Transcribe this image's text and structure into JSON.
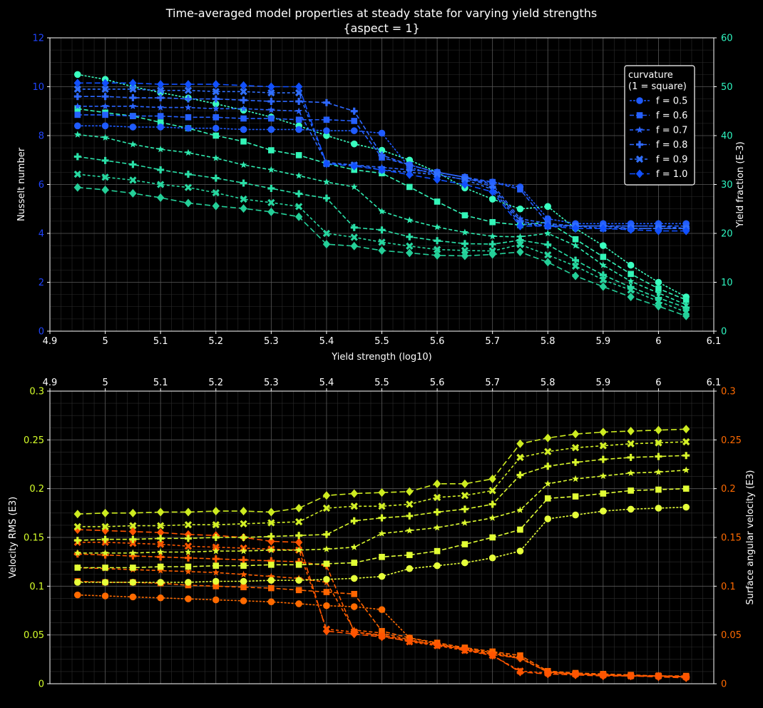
{
  "title_line1": "Time-averaged model properties at steady state for varying yield strengths",
  "title_line2": "{aspect = 1}",
  "colors": {
    "background": "#000000",
    "axis": "#ffffff",
    "grid_major": "#5a5a5a",
    "grid_minor": "#2c2c2c",
    "nusselt": "#1f44ff",
    "yield_fraction": "#2ef5c0",
    "vrms": "#d6ff2a",
    "surface": "#ff6a00",
    "series_blues": [
      "#1f5bff",
      "#2560ff",
      "#2a64ff",
      "#2e68ff",
      "#3170ff",
      "#1150ff"
    ],
    "series_cyans": [
      "#3affc0",
      "#33f5b8",
      "#2febb0",
      "#2ae0a8",
      "#27d8a0",
      "#24cf98"
    ],
    "series_yellows": [
      "#e6ff3a",
      "#e2ff35",
      "#ddfb30",
      "#d8f62b",
      "#d3f026",
      "#cdeb20"
    ],
    "series_oranges": [
      "#ff6a00",
      "#ff6500",
      "#ff6000",
      "#ff5c00",
      "#ff5800",
      "#ff5400"
    ]
  },
  "legend": {
    "title_line1": "curvature",
    "title_line2": "(1 = square)",
    "entries": [
      "f = 0.5",
      "f = 0.6",
      "f = 0.7",
      "f = 0.8",
      "f = 0.9",
      "f = 1.0"
    ],
    "markers": [
      "circle",
      "square",
      "star",
      "plus",
      "x",
      "diamond"
    ],
    "placement": "upper-right"
  },
  "chart_data": [
    {
      "type": "line",
      "xlabel": "Yield strength (log10)",
      "ylabel_left": "Nusselt number",
      "ylabel_right": "Yield fraction (E-3)",
      "xlim": [
        4.9,
        6.1
      ],
      "ylim_left": [
        0,
        12
      ],
      "ylim_right": [
        0,
        60
      ],
      "xticks": [
        "4.9",
        "5",
        "5.1",
        "5.2",
        "5.3",
        "5.4",
        "5.5",
        "5.6",
        "5.7",
        "5.8",
        "5.9",
        "6",
        "6.1"
      ],
      "yticks_left": [
        "0",
        "2",
        "4",
        "6",
        "8",
        "10",
        "12"
      ],
      "yticks_right": [
        "0",
        "10",
        "20",
        "30",
        "40",
        "50",
        "60"
      ],
      "grid": true,
      "x": [
        4.95,
        5.0,
        5.05,
        5.1,
        5.15,
        5.2,
        5.25,
        5.3,
        5.35,
        5.4,
        5.45,
        5.5,
        5.55,
        5.6,
        5.65,
        5.7,
        5.75,
        5.8,
        5.85,
        5.9,
        5.95,
        6.0,
        6.05
      ],
      "series_left": [
        {
          "name": "f = 0.5",
          "values": [
            8.4,
            8.4,
            8.35,
            8.35,
            8.3,
            8.3,
            8.25,
            8.25,
            8.25,
            8.2,
            8.2,
            8.1,
            6.7,
            6.4,
            6.2,
            6.1,
            5.9,
            4.6,
            4.4,
            4.4,
            4.4,
            4.4,
            4.4
          ]
        },
        {
          "name": "f = 0.6",
          "values": [
            8.85,
            8.85,
            8.8,
            8.8,
            8.75,
            8.75,
            8.7,
            8.7,
            8.65,
            8.65,
            8.6,
            7.1,
            6.8,
            6.5,
            6.3,
            6.1,
            5.8,
            4.4,
            4.3,
            4.3,
            4.3,
            4.3,
            4.3
          ]
        },
        {
          "name": "f = 0.7",
          "values": [
            9.2,
            9.2,
            9.2,
            9.15,
            9.15,
            9.1,
            9.1,
            9.05,
            9.0,
            6.9,
            6.8,
            6.7,
            6.6,
            6.5,
            6.3,
            6.0,
            4.6,
            4.4,
            4.3,
            4.3,
            4.3,
            4.3,
            4.2
          ]
        },
        {
          "name": "f = 0.8",
          "values": [
            9.6,
            9.6,
            9.55,
            9.55,
            9.5,
            9.5,
            9.45,
            9.4,
            9.4,
            9.35,
            9.0,
            7.2,
            6.8,
            6.5,
            6.3,
            5.9,
            4.5,
            4.3,
            4.3,
            4.3,
            4.2,
            4.2,
            4.2
          ]
        },
        {
          "name": "f = 0.9",
          "values": [
            9.9,
            9.9,
            9.9,
            9.85,
            9.85,
            9.8,
            9.8,
            9.75,
            9.75,
            6.85,
            6.8,
            6.6,
            6.5,
            6.4,
            6.2,
            5.8,
            4.4,
            4.3,
            4.3,
            4.2,
            4.2,
            4.2,
            4.2
          ]
        },
        {
          "name": "f = 1.0",
          "values": [
            10.15,
            10.15,
            10.15,
            10.1,
            10.1,
            10.1,
            10.05,
            10.0,
            10.0,
            6.85,
            6.75,
            6.6,
            6.4,
            6.2,
            6.0,
            5.7,
            4.3,
            4.3,
            4.2,
            4.2,
            4.15,
            4.1,
            4.1
          ]
        }
      ],
      "series_right": [
        {
          "name": "f = 0.5",
          "values": [
            52.5,
            51.5,
            50.0,
            48.8,
            47.7,
            46.5,
            45.2,
            43.8,
            42.0,
            40.0,
            38.3,
            37.0,
            35.0,
            32.5,
            29.3,
            27.0,
            25.0,
            25.5,
            21.0,
            17.5,
            13.5,
            10.0,
            7.0
          ]
        },
        {
          "name": "f = 0.6",
          "values": [
            45.5,
            44.7,
            44.0,
            42.7,
            41.5,
            40.0,
            38.8,
            37.0,
            36.0,
            34.3,
            33.0,
            32.3,
            29.5,
            26.5,
            23.7,
            22.3,
            21.7,
            22.3,
            18.8,
            15.2,
            11.7,
            8.7,
            6.4
          ]
        },
        {
          "name": "f = 0.7",
          "values": [
            40.2,
            39.6,
            38.2,
            37.2,
            36.5,
            35.4,
            34.0,
            33.0,
            31.8,
            30.5,
            29.5,
            24.5,
            22.7,
            21.3,
            20.2,
            19.4,
            19.3,
            20.0,
            17.5,
            13.5,
            10.2,
            7.8,
            5.4
          ]
        },
        {
          "name": "f = 0.8",
          "values": [
            35.7,
            34.9,
            34.1,
            33.0,
            32.1,
            31.3,
            30.3,
            29.2,
            28.1,
            27.2,
            21.2,
            20.7,
            19.3,
            18.5,
            17.9,
            17.8,
            18.6,
            17.7,
            14.5,
            11.5,
            9.0,
            6.8,
            4.8
          ]
        },
        {
          "name": "f = 0.9",
          "values": [
            32.1,
            31.5,
            30.9,
            30.0,
            29.4,
            28.3,
            27.0,
            26.3,
            25.5,
            20.0,
            19.2,
            18.2,
            17.4,
            16.7,
            16.5,
            16.4,
            17.7,
            15.6,
            13.3,
            10.5,
            8.4,
            6.1,
            3.9
          ]
        },
        {
          "name": "f = 1.0",
          "values": [
            29.4,
            28.9,
            28.2,
            27.3,
            26.2,
            25.6,
            25.1,
            24.4,
            23.4,
            17.8,
            17.4,
            16.5,
            16.0,
            15.5,
            15.4,
            15.7,
            16.2,
            14.1,
            11.3,
            9.1,
            7.0,
            5.1,
            3.1
          ]
        }
      ]
    },
    {
      "type": "line",
      "xlabel": "",
      "ylabel_left": "Velocity RMS (E3)",
      "ylabel_right": "Surface angular velocity (E3)",
      "xlim": [
        4.9,
        6.1
      ],
      "ylim_left": [
        0,
        0.3
      ],
      "ylim_right": [
        0,
        0.3
      ],
      "xticks": [
        "4.9",
        "5",
        "5.1",
        "5.2",
        "5.3",
        "5.4",
        "5.5",
        "5.6",
        "5.7",
        "5.8",
        "5.9",
        "6",
        "6.1"
      ],
      "yticks_left": [
        "0",
        "0.05",
        "0.1",
        "0.15",
        "0.2",
        "0.25",
        "0.3"
      ],
      "yticks_right": [
        "0",
        "0.05",
        "0.1",
        "0.15",
        "0.2",
        "0.25",
        "0.3"
      ],
      "grid": true,
      "x": [
        4.95,
        5.0,
        5.05,
        5.1,
        5.15,
        5.2,
        5.25,
        5.3,
        5.35,
        5.4,
        5.45,
        5.5,
        5.55,
        5.6,
        5.65,
        5.7,
        5.75,
        5.8,
        5.85,
        5.9,
        5.95,
        6.0,
        6.05
      ],
      "series_left": [
        {
          "name": "f = 0.5",
          "values": [
            0.104,
            0.104,
            0.104,
            0.104,
            0.104,
            0.105,
            0.105,
            0.106,
            0.106,
            0.107,
            0.108,
            0.11,
            0.118,
            0.121,
            0.124,
            0.129,
            0.136,
            0.169,
            0.173,
            0.177,
            0.179,
            0.18,
            0.181
          ]
        },
        {
          "name": "f = 0.6",
          "values": [
            0.119,
            0.119,
            0.119,
            0.12,
            0.12,
            0.121,
            0.121,
            0.122,
            0.122,
            0.123,
            0.124,
            0.13,
            0.132,
            0.136,
            0.143,
            0.15,
            0.158,
            0.19,
            0.192,
            0.195,
            0.198,
            0.199,
            0.2
          ]
        },
        {
          "name": "f = 0.7",
          "values": [
            0.134,
            0.134,
            0.134,
            0.135,
            0.135,
            0.136,
            0.136,
            0.137,
            0.137,
            0.138,
            0.14,
            0.154,
            0.157,
            0.16,
            0.165,
            0.17,
            0.178,
            0.205,
            0.21,
            0.213,
            0.216,
            0.217,
            0.219
          ]
        },
        {
          "name": "f = 0.8",
          "values": [
            0.147,
            0.148,
            0.148,
            0.149,
            0.149,
            0.15,
            0.15,
            0.151,
            0.152,
            0.153,
            0.167,
            0.17,
            0.172,
            0.176,
            0.179,
            0.184,
            0.214,
            0.223,
            0.227,
            0.23,
            0.232,
            0.233,
            0.234
          ]
        },
        {
          "name": "f = 0.9",
          "values": [
            0.161,
            0.161,
            0.162,
            0.162,
            0.163,
            0.163,
            0.164,
            0.165,
            0.166,
            0.18,
            0.182,
            0.182,
            0.184,
            0.191,
            0.193,
            0.198,
            0.232,
            0.238,
            0.242,
            0.244,
            0.246,
            0.247,
            0.248
          ]
        },
        {
          "name": "f = 1.0",
          "values": [
            0.174,
            0.175,
            0.175,
            0.176,
            0.176,
            0.177,
            0.177,
            0.176,
            0.18,
            0.193,
            0.195,
            0.196,
            0.197,
            0.205,
            0.205,
            0.21,
            0.246,
            0.252,
            0.256,
            0.258,
            0.259,
            0.26,
            0.261
          ]
        }
      ],
      "series_right": [
        {
          "name": "f = 0.5",
          "values": [
            0.091,
            0.09,
            0.089,
            0.088,
            0.087,
            0.086,
            0.085,
            0.084,
            0.082,
            0.08,
            0.079,
            0.076,
            0.047,
            0.041,
            0.036,
            0.032,
            0.027,
            0.012,
            0.01,
            0.009,
            0.008,
            0.008,
            0.007
          ]
        },
        {
          "name": "f = 0.6",
          "values": [
            0.105,
            0.104,
            0.104,
            0.103,
            0.101,
            0.1,
            0.099,
            0.098,
            0.096,
            0.094,
            0.092,
            0.054,
            0.047,
            0.042,
            0.037,
            0.033,
            0.029,
            0.013,
            0.011,
            0.01,
            0.009,
            0.008,
            0.008
          ]
        },
        {
          "name": "f = 0.7",
          "values": [
            0.119,
            0.118,
            0.117,
            0.116,
            0.115,
            0.114,
            0.112,
            0.11,
            0.108,
            0.104,
            0.055,
            0.052,
            0.045,
            0.04,
            0.036,
            0.031,
            0.026,
            0.012,
            0.01,
            0.009,
            0.008,
            0.008,
            0.007
          ]
        },
        {
          "name": "f = 0.8",
          "values": [
            0.133,
            0.132,
            0.131,
            0.13,
            0.129,
            0.128,
            0.127,
            0.126,
            0.125,
            0.121,
            0.053,
            0.05,
            0.044,
            0.04,
            0.035,
            0.03,
            0.026,
            0.012,
            0.01,
            0.009,
            0.008,
            0.008,
            0.007
          ]
        },
        {
          "name": "f = 0.9",
          "values": [
            0.145,
            0.145,
            0.144,
            0.143,
            0.141,
            0.14,
            0.139,
            0.138,
            0.137,
            0.056,
            0.053,
            0.049,
            0.043,
            0.039,
            0.034,
            0.029,
            0.013,
            0.011,
            0.01,
            0.009,
            0.008,
            0.008,
            0.007
          ]
        },
        {
          "name": "f = 1.0",
          "values": [
            0.158,
            0.157,
            0.156,
            0.155,
            0.153,
            0.152,
            0.15,
            0.146,
            0.145,
            0.054,
            0.051,
            0.048,
            0.044,
            0.04,
            0.035,
            0.029,
            0.012,
            0.01,
            0.009,
            0.008,
            0.008,
            0.007,
            0.006
          ]
        }
      ]
    }
  ]
}
